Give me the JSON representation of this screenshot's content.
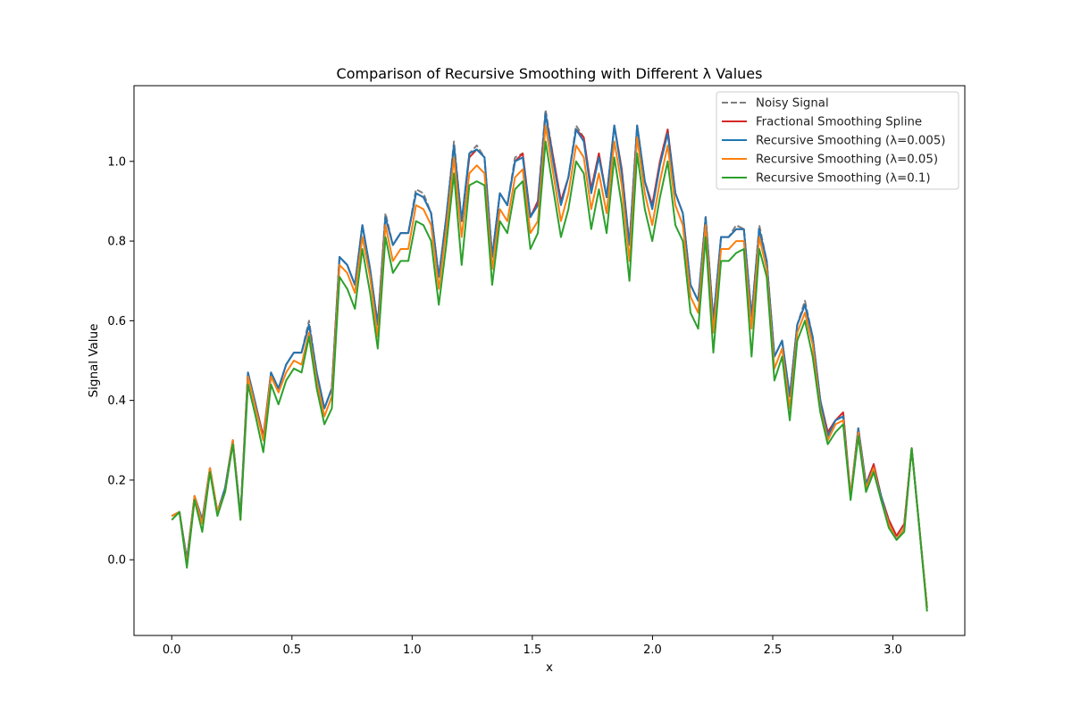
{
  "chart_data": {
    "type": "line",
    "title": "Comparison of Recursive Smoothing with Different λ Values",
    "xlabel": "x",
    "ylabel": "Signal Value",
    "xlim": [
      -0.157,
      3.299
    ],
    "ylim": [
      -0.19,
      1.19
    ],
    "xticks": [
      0.0,
      0.5,
      1.0,
      1.5,
      2.0,
      2.5,
      3.0
    ],
    "xtick_labels": [
      "0.0",
      "0.5",
      "1.0",
      "1.5",
      "2.0",
      "2.5",
      "3.0"
    ],
    "yticks": [
      0.0,
      0.2,
      0.4,
      0.6,
      0.8,
      1.0
    ],
    "ytick_labels": [
      "0.0",
      "0.2",
      "0.4",
      "0.6",
      "0.8",
      "1.0"
    ],
    "grid": false,
    "legend_position": "top-right",
    "x": [
      0.0,
      0.032,
      0.063,
      0.095,
      0.127,
      0.159,
      0.19,
      0.222,
      0.254,
      0.286,
      0.317,
      0.349,
      0.381,
      0.413,
      0.444,
      0.476,
      0.508,
      0.54,
      0.571,
      0.603,
      0.635,
      0.666,
      0.698,
      0.73,
      0.762,
      0.793,
      0.825,
      0.857,
      0.889,
      0.92,
      0.952,
      0.984,
      1.016,
      1.047,
      1.079,
      1.111,
      1.142,
      1.174,
      1.206,
      1.238,
      1.269,
      1.301,
      1.333,
      1.365,
      1.396,
      1.428,
      1.46,
      1.492,
      1.523,
      1.555,
      1.587,
      1.619,
      1.65,
      1.682,
      1.714,
      1.745,
      1.777,
      1.809,
      1.841,
      1.872,
      1.904,
      1.936,
      1.968,
      1.999,
      2.031,
      2.063,
      2.095,
      2.126,
      2.158,
      2.19,
      2.221,
      2.253,
      2.285,
      2.317,
      2.348,
      2.38,
      2.412,
      2.444,
      2.475,
      2.507,
      2.539,
      2.571,
      2.602,
      2.634,
      2.666,
      2.698,
      2.729,
      2.761,
      2.793,
      2.824,
      2.856,
      2.888,
      2.92,
      2.951,
      2.983,
      3.015,
      3.047,
      3.078,
      3.11,
      3.142
    ],
    "series": [
      {
        "name": "Noisy Signal",
        "color": "#7f7f7f",
        "dash": "dashed",
        "values": [
          0.11,
          0.12,
          0.0,
          0.16,
          0.1,
          0.23,
          0.12,
          0.18,
          0.3,
          0.11,
          0.47,
          0.39,
          0.3,
          0.47,
          0.43,
          0.49,
          0.52,
          0.52,
          0.6,
          0.47,
          0.38,
          0.43,
          0.76,
          0.74,
          0.69,
          0.84,
          0.73,
          0.59,
          0.87,
          0.79,
          0.82,
          0.82,
          0.93,
          0.92,
          0.87,
          0.71,
          0.86,
          1.05,
          0.85,
          1.02,
          1.04,
          1.01,
          0.76,
          0.92,
          0.89,
          1.01,
          1.02,
          0.86,
          0.9,
          1.13,
          1.01,
          0.9,
          0.96,
          1.09,
          1.06,
          0.93,
          1.02,
          0.91,
          1.09,
          0.98,
          0.79,
          1.09,
          0.95,
          0.89,
          1.0,
          1.08,
          0.92,
          0.87,
          0.69,
          0.65,
          0.86,
          0.6,
          0.81,
          0.81,
          0.84,
          0.83,
          0.61,
          0.84,
          0.75,
          0.51,
          0.55,
          0.41,
          0.59,
          0.65,
          0.56,
          0.4,
          0.32,
          0.35,
          0.37,
          0.16,
          0.33,
          0.19,
          0.24,
          0.16,
          0.1,
          0.06,
          0.09,
          0.28,
          0.08,
          -0.12
        ]
      },
      {
        "name": "Fractional Smoothing Spline",
        "color": "#d62728",
        "dash": "solid",
        "values": [
          0.11,
          0.12,
          0.0,
          0.16,
          0.1,
          0.23,
          0.12,
          0.18,
          0.3,
          0.11,
          0.47,
          0.39,
          0.31,
          0.47,
          0.43,
          0.49,
          0.52,
          0.52,
          0.59,
          0.47,
          0.38,
          0.43,
          0.76,
          0.74,
          0.69,
          0.84,
          0.73,
          0.59,
          0.86,
          0.79,
          0.82,
          0.82,
          0.92,
          0.91,
          0.87,
          0.71,
          0.86,
          1.04,
          0.85,
          1.01,
          1.03,
          1.01,
          0.76,
          0.92,
          0.89,
          1.0,
          1.02,
          0.86,
          0.9,
          1.12,
          1.01,
          0.9,
          0.96,
          1.08,
          1.06,
          0.93,
          1.02,
          0.91,
          1.09,
          0.98,
          0.79,
          1.09,
          0.95,
          0.89,
          1.0,
          1.08,
          0.92,
          0.87,
          0.69,
          0.65,
          0.86,
          0.6,
          0.81,
          0.81,
          0.83,
          0.83,
          0.61,
          0.83,
          0.75,
          0.51,
          0.55,
          0.41,
          0.59,
          0.64,
          0.56,
          0.4,
          0.32,
          0.35,
          0.37,
          0.16,
          0.33,
          0.19,
          0.24,
          0.16,
          0.1,
          0.06,
          0.09,
          0.28,
          0.08,
          -0.12
        ]
      },
      {
        "name": "Recursive Smoothing (λ=0.005)",
        "color": "#1f77b4",
        "dash": "solid",
        "values": [
          0.11,
          0.12,
          0.0,
          0.16,
          0.1,
          0.23,
          0.12,
          0.18,
          0.3,
          0.11,
          0.47,
          0.39,
          0.3,
          0.47,
          0.43,
          0.49,
          0.52,
          0.52,
          0.59,
          0.47,
          0.38,
          0.43,
          0.76,
          0.74,
          0.69,
          0.84,
          0.73,
          0.59,
          0.86,
          0.79,
          0.82,
          0.82,
          0.92,
          0.91,
          0.87,
          0.71,
          0.86,
          1.04,
          0.85,
          1.02,
          1.03,
          1.01,
          0.76,
          0.92,
          0.89,
          1.0,
          1.01,
          0.86,
          0.89,
          1.12,
          1.0,
          0.89,
          0.96,
          1.08,
          1.05,
          0.92,
          1.01,
          0.91,
          1.09,
          0.97,
          0.79,
          1.09,
          0.95,
          0.88,
          0.99,
          1.07,
          0.92,
          0.87,
          0.69,
          0.65,
          0.86,
          0.6,
          0.81,
          0.81,
          0.83,
          0.83,
          0.61,
          0.83,
          0.75,
          0.51,
          0.55,
          0.41,
          0.59,
          0.64,
          0.56,
          0.4,
          0.31,
          0.35,
          0.36,
          0.16,
          0.33,
          0.19,
          0.23,
          0.16,
          0.09,
          0.05,
          0.08,
          0.28,
          0.08,
          -0.12
        ]
      },
      {
        "name": "Recursive Smoothing (λ=0.05)",
        "color": "#ff7f0e",
        "dash": "solid",
        "values": [
          0.11,
          0.12,
          -0.01,
          0.16,
          0.09,
          0.23,
          0.12,
          0.17,
          0.3,
          0.1,
          0.46,
          0.38,
          0.3,
          0.46,
          0.42,
          0.47,
          0.5,
          0.49,
          0.57,
          0.45,
          0.36,
          0.41,
          0.74,
          0.72,
          0.67,
          0.81,
          0.71,
          0.56,
          0.84,
          0.75,
          0.78,
          0.78,
          0.89,
          0.88,
          0.84,
          0.68,
          0.83,
          1.01,
          0.81,
          0.97,
          0.99,
          0.97,
          0.73,
          0.88,
          0.85,
          0.96,
          0.98,
          0.82,
          0.85,
          1.09,
          0.97,
          0.85,
          0.92,
          1.04,
          1.01,
          0.88,
          0.97,
          0.87,
          1.05,
          0.94,
          0.75,
          1.06,
          0.92,
          0.84,
          0.95,
          1.04,
          0.89,
          0.84,
          0.66,
          0.62,
          0.84,
          0.57,
          0.78,
          0.78,
          0.8,
          0.8,
          0.58,
          0.81,
          0.73,
          0.48,
          0.53,
          0.38,
          0.57,
          0.62,
          0.54,
          0.38,
          0.3,
          0.34,
          0.35,
          0.16,
          0.32,
          0.18,
          0.23,
          0.15,
          0.09,
          0.05,
          0.08,
          0.28,
          0.08,
          -0.12
        ]
      },
      {
        "name": "Recursive Smoothing (λ=0.1)",
        "color": "#2ca02c",
        "dash": "solid",
        "values": [
          0.1,
          0.12,
          -0.02,
          0.15,
          0.07,
          0.22,
          0.11,
          0.17,
          0.29,
          0.1,
          0.44,
          0.36,
          0.27,
          0.44,
          0.39,
          0.45,
          0.48,
          0.47,
          0.56,
          0.43,
          0.34,
          0.38,
          0.71,
          0.68,
          0.63,
          0.78,
          0.67,
          0.53,
          0.81,
          0.72,
          0.75,
          0.75,
          0.85,
          0.84,
          0.8,
          0.64,
          0.79,
          0.97,
          0.74,
          0.94,
          0.95,
          0.94,
          0.69,
          0.85,
          0.82,
          0.93,
          0.95,
          0.78,
          0.82,
          1.05,
          0.93,
          0.81,
          0.88,
          1.0,
          0.97,
          0.83,
          0.93,
          0.82,
          1.01,
          0.89,
          0.7,
          1.02,
          0.88,
          0.8,
          0.91,
          1.0,
          0.84,
          0.8,
          0.62,
          0.58,
          0.81,
          0.52,
          0.75,
          0.75,
          0.77,
          0.78,
          0.51,
          0.78,
          0.71,
          0.45,
          0.51,
          0.35,
          0.55,
          0.6,
          0.51,
          0.37,
          0.29,
          0.32,
          0.34,
          0.15,
          0.31,
          0.17,
          0.22,
          0.15,
          0.08,
          0.05,
          0.07,
          0.28,
          0.08,
          -0.13
        ]
      }
    ]
  }
}
